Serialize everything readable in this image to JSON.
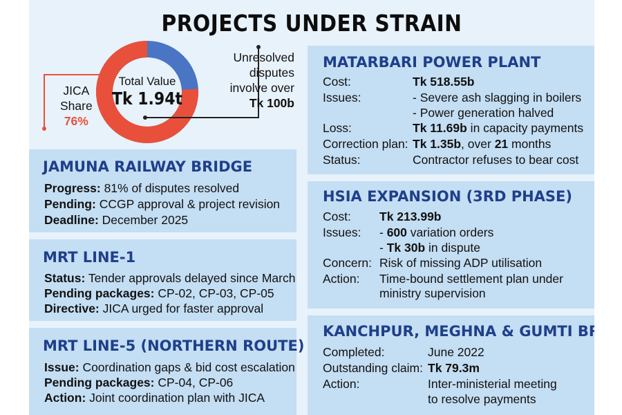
{
  "title": "PROJECTS UNDER STRAIN",
  "summary": {
    "jica_label_1": "JICA",
    "jica_label_2": "Share",
    "jica_share": "76%",
    "jica_share_value": 76,
    "total_label": "Total Value",
    "total_value": "Tk 1.94t",
    "unresolved_1": "Unresolved",
    "unresolved_2": "disputes",
    "unresolved_3": "involve over",
    "unresolved_amount": "Tk 100b"
  },
  "colors": {
    "jica": "#e8503c",
    "other": "#4a74c4",
    "heading": "#1f3f8a",
    "panel": "#c4def3",
    "background": "#e8f2fb"
  },
  "jamuna": {
    "heading": "JAMUNA RAILWAY BRIDGE",
    "progress_label": "Progress:",
    "progress": " 81% of disputes resolved",
    "pending_label": "Pending:",
    "pending": " CCGP approval & project revision",
    "deadline_label": "Deadline:",
    "deadline": " December 2025"
  },
  "mrt1": {
    "heading": "MRT LINE-1",
    "status_label": "Status:",
    "status": " Tender approvals delayed since March",
    "pending_label": "Pending packages:",
    "pending": " CP-02, CP-03, CP-05",
    "directive_label": "Directive:",
    "directive": " JICA urged for faster approval"
  },
  "mrt5": {
    "heading": "MRT LINE-5 (NORTHERN ROUTE)",
    "issue_label": "Issue:",
    "issue": " Coordination gaps & bid cost escalation",
    "pending_label": "Pending packages:",
    "pending": " CP-04, CP-06",
    "action_label": "Action:",
    "action": " Joint coordination plan with JICA"
  },
  "matarbari": {
    "heading": "MATARBARI POWER PLANT",
    "cost_label": "Cost:",
    "cost": "Tk 518.55b",
    "issues_label": "Issues:",
    "issue_1": "- Severe ash slagging in boilers",
    "issue_2": "- Power generation halved",
    "loss_label": "Loss:",
    "loss_amount": "Tk 11.69b",
    "loss_rest": " in capacity payments",
    "correction_label": "Correction plan:",
    "correction_amount": "Tk 1.35b",
    "correction_mid": ", over ",
    "correction_months": "21",
    "correction_end": " months",
    "status_label": "Status:",
    "status": "Contractor refuses to bear cost"
  },
  "hsia": {
    "heading": "HSIA EXPANSION (3RD PHASE)",
    "cost_label": "Cost:",
    "cost": "Tk 213.99b",
    "issues_label": "Issues:",
    "issue_1_prefix": "- ",
    "issue_1_num": "600",
    "issue_1_rest": " variation orders",
    "issue_2_prefix": "- ",
    "issue_2_num": "Tk 30b",
    "issue_2_rest": " in dispute",
    "concern_label": "Concern:",
    "concern": "Risk of missing ADP utilisation",
    "action_label": "Action:",
    "action_1": "Time-bound settlement plan under",
    "action_2": "ministry supervision"
  },
  "kanchpur": {
    "heading": "KANCHPUR, MEGHNA & GUMTI BRIDGES",
    "completed_label": "Completed:",
    "completed": "June 2022",
    "claim_label": "Outstanding claim:",
    "claim": "Tk 79.3m",
    "action_label": "Action:",
    "action_1": "Inter-ministerial meeting",
    "action_2": "to resolve payments"
  }
}
